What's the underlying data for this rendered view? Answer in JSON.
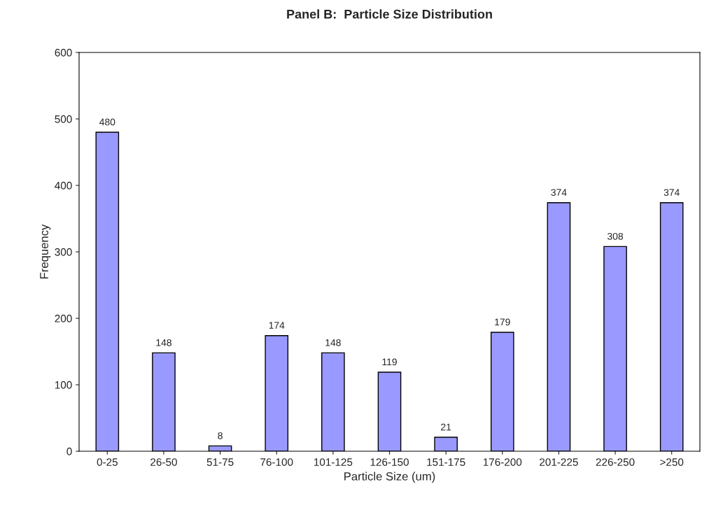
{
  "chart_data": {
    "type": "bar",
    "title": "Panel B:  Particle Size Distribution",
    "xlabel": "Particle Size (um)",
    "ylabel": "Frequency",
    "categories": [
      "0-25",
      "26-50",
      "51-75",
      "76-100",
      "101-125",
      "126-150",
      "151-175",
      "176-200",
      "201-225",
      "226-250",
      ">250"
    ],
    "values": [
      480,
      148,
      8,
      174,
      148,
      119,
      21,
      179,
      374,
      308,
      374
    ],
    "color": "#9999ff",
    "ylim": [
      0,
      600
    ],
    "yticks": [
      0,
      100,
      200,
      300,
      400,
      500,
      600
    ],
    "grid": false,
    "data_labels": true
  }
}
